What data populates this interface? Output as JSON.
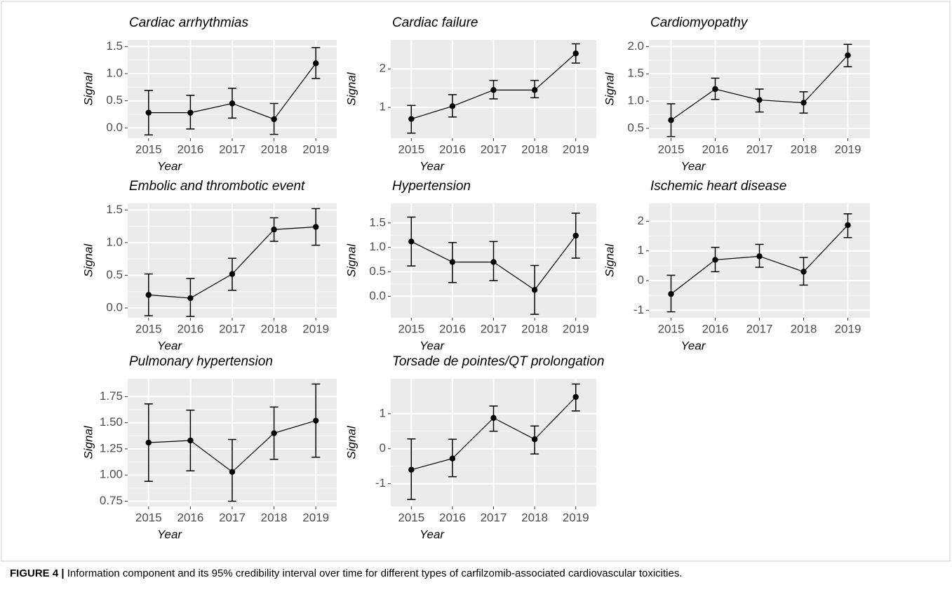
{
  "chart_data": [
    {
      "type": "line",
      "title": "Cardiac arrhythmias",
      "x_label": "Year",
      "y_label": "Signal",
      "categories": [
        "2015",
        "2016",
        "2017",
        "2018",
        "2019"
      ],
      "series": [
        {
          "color": "#000000",
          "values": [
            0.28,
            0.28,
            0.45,
            0.16,
            1.19
          ],
          "lower": [
            -0.13,
            -0.02,
            0.18,
            -0.12,
            0.91
          ],
          "upper": [
            0.69,
            0.6,
            0.73,
            0.45,
            1.48
          ]
        }
      ],
      "ylim": [
        -0.19,
        1.62
      ],
      "yticks": [
        {
          "value": 0,
          "label": "0.0"
        },
        0.5,
        {
          "value": 1,
          "label": "1.0"
        },
        1.5
      ],
      "grid": true
    },
    {
      "type": "line",
      "title": "Cardiac failure",
      "x_label": "Year",
      "y_label": "Signal",
      "categories": [
        "2015",
        "2016",
        "2017",
        "2018",
        "2019"
      ],
      "series": [
        {
          "color": "#000000",
          "values": [
            0.7,
            1.03,
            1.45,
            1.45,
            2.4
          ],
          "lower": [
            0.33,
            0.75,
            1.22,
            1.25,
            2.15
          ],
          "upper": [
            1.05,
            1.33,
            1.7,
            1.7,
            2.65
          ]
        }
      ],
      "ylim": [
        0.2,
        2.75
      ],
      "yticks": [
        1,
        2
      ],
      "grid": true
    },
    {
      "type": "line",
      "title": "Cardiomyopathy",
      "x_label": "Year",
      "y_label": "Signal",
      "categories": [
        "2015",
        "2016",
        "2017",
        "2018",
        "2019"
      ],
      "series": [
        {
          "color": "#000000",
          "values": [
            0.65,
            1.22,
            1.02,
            0.97,
            1.84
          ],
          "lower": [
            0.35,
            1.03,
            0.8,
            0.78,
            1.63
          ],
          "upper": [
            0.95,
            1.42,
            1.22,
            1.17,
            2.04
          ]
        }
      ],
      "ylim": [
        0.32,
        2.12
      ],
      "yticks": [
        0.5,
        {
          "value": 1,
          "label": "1.0"
        },
        1.5,
        {
          "value": 2,
          "label": "2.0"
        }
      ],
      "grid": true
    },
    {
      "type": "line",
      "title": "Embolic and thrombotic event",
      "x_label": "Year",
      "y_label": "Signal",
      "categories": [
        "2015",
        "2016",
        "2017",
        "2018",
        "2019"
      ],
      "series": [
        {
          "color": "#000000",
          "values": [
            0.2,
            0.15,
            0.52,
            1.2,
            1.24
          ],
          "lower": [
            -0.12,
            -0.13,
            0.27,
            1.02,
            0.96
          ],
          "upper": [
            0.52,
            0.45,
            0.76,
            1.38,
            1.52
          ]
        }
      ],
      "ylim": [
        -0.15,
        1.6
      ],
      "yticks": [
        {
          "value": 0,
          "label": "0.0"
        },
        0.5,
        {
          "value": 1,
          "label": "1.0"
        },
        1.5
      ],
      "grid": true
    },
    {
      "type": "line",
      "title": "Hypertension",
      "x_label": "Year",
      "y_label": "Signal",
      "categories": [
        "2015",
        "2016",
        "2017",
        "2018",
        "2019"
      ],
      "series": [
        {
          "color": "#000000",
          "values": [
            1.12,
            0.7,
            0.7,
            0.13,
            1.24
          ],
          "lower": [
            0.62,
            0.28,
            0.32,
            -0.37,
            0.78
          ],
          "upper": [
            1.62,
            1.1,
            1.12,
            0.63,
            1.7
          ]
        }
      ],
      "ylim": [
        -0.44,
        1.9
      ],
      "yticks": [
        {
          "value": 0,
          "label": "0.0"
        },
        0.5,
        {
          "value": 1,
          "label": "1.0"
        },
        1.5
      ],
      "grid": true
    },
    {
      "type": "line",
      "title": "Ischemic heart disease",
      "x_label": "Year",
      "y_label": "Signal",
      "categories": [
        "2015",
        "2016",
        "2017",
        "2018",
        "2019"
      ],
      "series": [
        {
          "color": "#000000",
          "values": [
            -0.45,
            0.7,
            0.82,
            0.3,
            1.87
          ],
          "lower": [
            -1.05,
            0.3,
            0.45,
            -0.15,
            1.45
          ],
          "upper": [
            0.18,
            1.12,
            1.22,
            0.78,
            2.25
          ]
        }
      ],
      "ylim": [
        -1.25,
        2.6
      ],
      "yticks": [
        -1,
        0,
        1,
        2
      ],
      "grid": true
    },
    {
      "type": "line",
      "title": "Pulmonary hypertension",
      "x_label": "Year",
      "y_label": "Signal",
      "categories": [
        "2015",
        "2016",
        "2017",
        "2018",
        "2019"
      ],
      "series": [
        {
          "color": "#000000",
          "values": [
            1.31,
            1.33,
            1.03,
            1.4,
            1.52
          ],
          "lower": [
            0.94,
            1.04,
            0.75,
            1.15,
            1.17
          ],
          "upper": [
            1.68,
            1.62,
            1.34,
            1.65,
            1.87
          ]
        }
      ],
      "ylim": [
        0.7,
        1.92
      ],
      "yticks": [
        0.75,
        {
          "value": 1,
          "label": "1.00"
        },
        1.25,
        {
          "value": 1.5,
          "label": "1.50"
        },
        1.75
      ],
      "grid": true
    },
    {
      "type": "line",
      "title": "Torsade de pointes/QT prolongation",
      "x_label": "Year",
      "y_label": "Signal",
      "categories": [
        "2015",
        "2016",
        "2017",
        "2018",
        "2019"
      ],
      "series": [
        {
          "color": "#000000",
          "values": [
            -0.6,
            -0.28,
            0.88,
            0.27,
            1.48
          ],
          "lower": [
            -1.45,
            -0.8,
            0.5,
            -0.15,
            1.08
          ],
          "upper": [
            0.28,
            0.27,
            1.22,
            0.65,
            1.85
          ]
        }
      ],
      "ylim": [
        -1.65,
        2.0
      ],
      "yticks": [
        -1,
        0,
        1
      ],
      "grid": true
    }
  ],
  "caption": {
    "label": "FIGURE 4 |",
    "text": "Information component and its 95% credibility interval over time for different types of carfilzomib-associated cardiovascular toxicities."
  }
}
